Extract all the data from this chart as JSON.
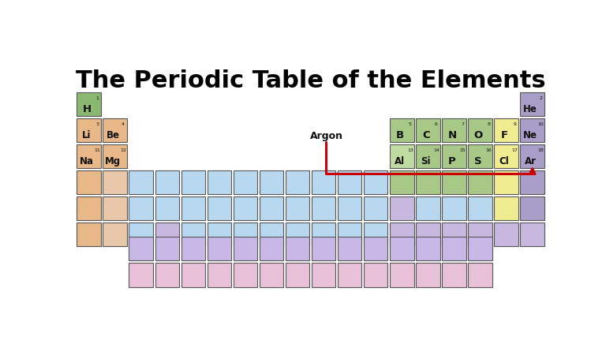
{
  "title": "The Periodic Table of the Elements",
  "title_fontsize": 22,
  "bg": "#ffffff",
  "elements": [
    {
      "symbol": "H",
      "number": 1,
      "row": 0,
      "col": 0,
      "color": "#8ab870"
    },
    {
      "symbol": "He",
      "number": 2,
      "row": 0,
      "col": 17,
      "color": "#a89ec8"
    },
    {
      "symbol": "Li",
      "number": 3,
      "row": 1,
      "col": 0,
      "color": "#e8b888"
    },
    {
      "symbol": "Be",
      "number": 4,
      "row": 1,
      "col": 1,
      "color": "#e8b888"
    },
    {
      "symbol": "B",
      "number": 5,
      "row": 1,
      "col": 12,
      "color": "#a8c888"
    },
    {
      "symbol": "C",
      "number": 6,
      "row": 1,
      "col": 13,
      "color": "#a8c888"
    },
    {
      "symbol": "N",
      "number": 7,
      "row": 1,
      "col": 14,
      "color": "#a8c888"
    },
    {
      "symbol": "O",
      "number": 8,
      "row": 1,
      "col": 15,
      "color": "#a8c888"
    },
    {
      "symbol": "F",
      "number": 9,
      "row": 1,
      "col": 16,
      "color": "#f0ec90"
    },
    {
      "symbol": "Ne",
      "number": 10,
      "row": 1,
      "col": 17,
      "color": "#a89ec8"
    },
    {
      "symbol": "Na",
      "number": 11,
      "row": 2,
      "col": 0,
      "color": "#e8b888"
    },
    {
      "symbol": "Mg",
      "number": 12,
      "row": 2,
      "col": 1,
      "color": "#e8b888"
    },
    {
      "symbol": "Al",
      "number": 13,
      "row": 2,
      "col": 12,
      "color": "#c0dca0"
    },
    {
      "symbol": "Si",
      "number": 14,
      "row": 2,
      "col": 13,
      "color": "#a8c888"
    },
    {
      "symbol": "P",
      "number": 15,
      "row": 2,
      "col": 14,
      "color": "#a8c888"
    },
    {
      "symbol": "S",
      "number": 16,
      "row": 2,
      "col": 15,
      "color": "#a8c888"
    },
    {
      "symbol": "Cl",
      "number": 17,
      "row": 2,
      "col": 16,
      "color": "#f0ec90"
    },
    {
      "symbol": "Ar",
      "number": 18,
      "row": 2,
      "col": 17,
      "color": "#a89ec8"
    }
  ],
  "blank_cells": [
    {
      "row": 3,
      "col": 0,
      "color": "#e8b888"
    },
    {
      "row": 3,
      "col": 1,
      "color": "#e8c8a8"
    },
    {
      "row": 3,
      "col": 2,
      "color": "#b8d8f0"
    },
    {
      "row": 3,
      "col": 3,
      "color": "#b8d8f0"
    },
    {
      "row": 3,
      "col": 4,
      "color": "#b8d8f0"
    },
    {
      "row": 3,
      "col": 5,
      "color": "#b8d8f0"
    },
    {
      "row": 3,
      "col": 6,
      "color": "#b8d8f0"
    },
    {
      "row": 3,
      "col": 7,
      "color": "#b8d8f0"
    },
    {
      "row": 3,
      "col": 8,
      "color": "#b8d8f0"
    },
    {
      "row": 3,
      "col": 9,
      "color": "#b8d8f0"
    },
    {
      "row": 3,
      "col": 10,
      "color": "#b8d8f0"
    },
    {
      "row": 3,
      "col": 11,
      "color": "#b8d8f0"
    },
    {
      "row": 3,
      "col": 12,
      "color": "#a8c888"
    },
    {
      "row": 3,
      "col": 13,
      "color": "#a8c888"
    },
    {
      "row": 3,
      "col": 14,
      "color": "#a8c888"
    },
    {
      "row": 3,
      "col": 15,
      "color": "#a8c888"
    },
    {
      "row": 3,
      "col": 16,
      "color": "#f0ec90"
    },
    {
      "row": 3,
      "col": 17,
      "color": "#a89ec8"
    },
    {
      "row": 4,
      "col": 0,
      "color": "#e8b888"
    },
    {
      "row": 4,
      "col": 1,
      "color": "#e8c8a8"
    },
    {
      "row": 4,
      "col": 2,
      "color": "#b8d8f0"
    },
    {
      "row": 4,
      "col": 3,
      "color": "#b8d8f0"
    },
    {
      "row": 4,
      "col": 4,
      "color": "#b8d8f0"
    },
    {
      "row": 4,
      "col": 5,
      "color": "#b8d8f0"
    },
    {
      "row": 4,
      "col": 6,
      "color": "#b8d8f0"
    },
    {
      "row": 4,
      "col": 7,
      "color": "#b8d8f0"
    },
    {
      "row": 4,
      "col": 8,
      "color": "#b8d8f0"
    },
    {
      "row": 4,
      "col": 9,
      "color": "#b8d8f0"
    },
    {
      "row": 4,
      "col": 10,
      "color": "#b8d8f0"
    },
    {
      "row": 4,
      "col": 11,
      "color": "#b8d8f0"
    },
    {
      "row": 4,
      "col": 12,
      "color": "#c8b8e0"
    },
    {
      "row": 4,
      "col": 13,
      "color": "#b8d8f0"
    },
    {
      "row": 4,
      "col": 14,
      "color": "#b8d8f0"
    },
    {
      "row": 4,
      "col": 15,
      "color": "#b8d8f0"
    },
    {
      "row": 4,
      "col": 16,
      "color": "#f0ec90"
    },
    {
      "row": 4,
      "col": 17,
      "color": "#a89ec8"
    },
    {
      "row": 5,
      "col": 0,
      "color": "#e8b888"
    },
    {
      "row": 5,
      "col": 1,
      "color": "#e8c8a8"
    },
    {
      "row": 5,
      "col": 2,
      "color": "#b8d8f0"
    },
    {
      "row": 5,
      "col": 3,
      "color": "#c8b8e0"
    },
    {
      "row": 5,
      "col": 4,
      "color": "#b8d8f0"
    },
    {
      "row": 5,
      "col": 5,
      "color": "#b8d8f0"
    },
    {
      "row": 5,
      "col": 6,
      "color": "#b8d8f0"
    },
    {
      "row": 5,
      "col": 7,
      "color": "#b8d8f0"
    },
    {
      "row": 5,
      "col": 8,
      "color": "#b8d8f0"
    },
    {
      "row": 5,
      "col": 9,
      "color": "#b8d8f0"
    },
    {
      "row": 5,
      "col": 10,
      "color": "#b8d8f0"
    },
    {
      "row": 5,
      "col": 11,
      "color": "#b8d8f0"
    },
    {
      "row": 5,
      "col": 12,
      "color": "#c8b8e0"
    },
    {
      "row": 5,
      "col": 13,
      "color": "#c8b8e0"
    },
    {
      "row": 5,
      "col": 14,
      "color": "#c8b8e0"
    },
    {
      "row": 5,
      "col": 15,
      "color": "#c8b8e0"
    },
    {
      "row": 5,
      "col": 16,
      "color": "#c8b8e0"
    },
    {
      "row": 5,
      "col": 17,
      "color": "#c8b8e0"
    }
  ],
  "lanthanide_cols": [
    2,
    3,
    4,
    5,
    6,
    7,
    8,
    9,
    10,
    11,
    12,
    13,
    14,
    15
  ],
  "lanthanide_color": "#c8b8e8",
  "actinide_color": "#e8c0d8",
  "argon_label": "Argon",
  "edge_color": "#555555",
  "edge_lw": 0.8
}
